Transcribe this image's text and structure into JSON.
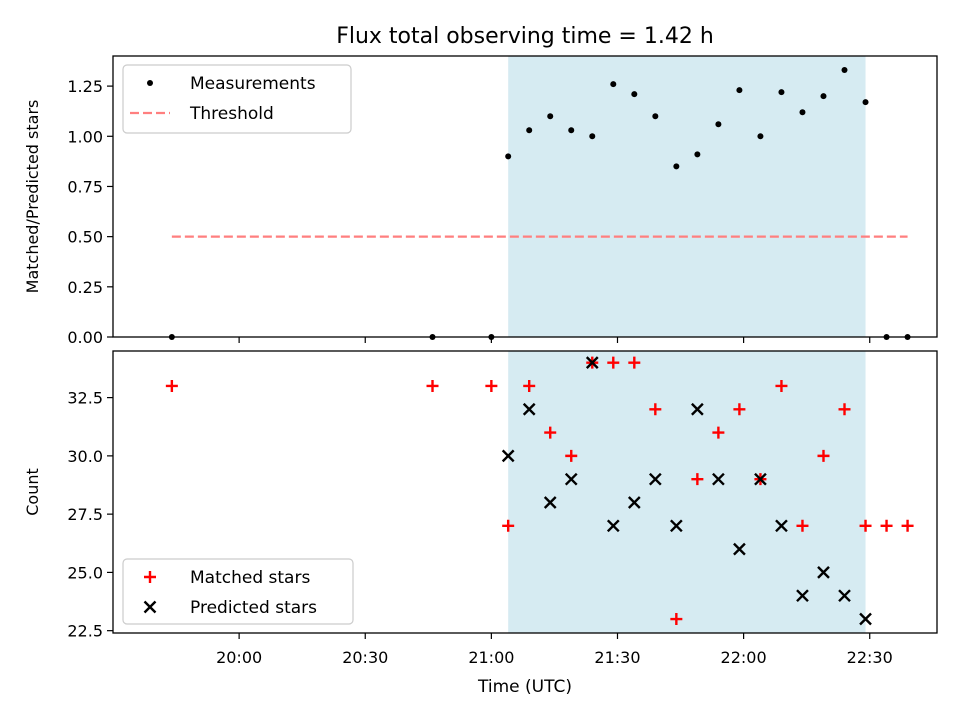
{
  "figure": {
    "title": "Flux total observing time = 1.42 h",
    "xlabel": "Time (UTC)",
    "highlight_color": "#add8e6",
    "highlight_range": [
      "21:04",
      "22:29"
    ],
    "x_ticks": [
      "20:00",
      "20:30",
      "21:00",
      "21:30",
      "22:00",
      "22:30"
    ],
    "x_range": [
      "19:37",
      "22:39"
    ]
  },
  "chart_data": [
    {
      "type": "scatter",
      "ylabel": "Matched/Predicted stars",
      "ylim": [
        0,
        1.4
      ],
      "y_ticks": [
        "0.00",
        "0.25",
        "0.50",
        "0.75",
        "1.00",
        "1.25"
      ],
      "grid": false,
      "legend_position": "top-left",
      "series": [
        {
          "name": "Measurements",
          "kind": "points",
          "color": "#000000",
          "x": [
            "19:44",
            "20:46",
            "21:00",
            "21:04",
            "21:09",
            "21:14",
            "21:19",
            "21:24",
            "21:29",
            "21:34",
            "21:39",
            "21:44",
            "21:49",
            "21:54",
            "21:59",
            "22:04",
            "22:09",
            "22:14",
            "22:19",
            "22:24",
            "22:29",
            "22:34",
            "22:39"
          ],
          "y": [
            0,
            0,
            0,
            0.9,
            1.03,
            1.1,
            1.03,
            1.0,
            1.26,
            1.21,
            1.1,
            0.85,
            0.91,
            1.06,
            1.23,
            1.0,
            1.22,
            1.12,
            1.2,
            1.33,
            1.17,
            0,
            0
          ]
        },
        {
          "name": "Threshold",
          "kind": "dashed-line",
          "color": "#ff7f7f",
          "x": [
            "19:44",
            "22:39"
          ],
          "y": [
            0.5,
            0.5
          ]
        }
      ]
    },
    {
      "type": "scatter",
      "ylabel": "Count",
      "ylim": [
        22.4,
        34.5
      ],
      "y_ticks": [
        "22.5",
        "25.0",
        "27.5",
        "30.0",
        "32.5"
      ],
      "grid": false,
      "legend_position": "bottom-left",
      "series": [
        {
          "name": "Matched stars",
          "kind": "plus",
          "color": "#ff0000",
          "x": [
            "19:44",
            "20:46",
            "21:00",
            "21:04",
            "21:09",
            "21:14",
            "21:19",
            "21:24",
            "21:29",
            "21:34",
            "21:39",
            "21:44",
            "21:49",
            "21:54",
            "21:59",
            "22:04",
            "22:09",
            "22:14",
            "22:19",
            "22:24",
            "22:29",
            "22:34",
            "22:39"
          ],
          "y": [
            33,
            33,
            33,
            27,
            33,
            31,
            30,
            34,
            34,
            34,
            32,
            23,
            29,
            31,
            32,
            29,
            33,
            27,
            30,
            32,
            27,
            27,
            27
          ]
        },
        {
          "name": "Predicted stars",
          "kind": "cross",
          "color": "#000000",
          "x": [
            "21:04",
            "21:09",
            "21:14",
            "21:19",
            "21:24",
            "21:29",
            "21:34",
            "21:39",
            "21:44",
            "21:49",
            "21:54",
            "21:59",
            "22:04",
            "22:09",
            "22:14",
            "22:19",
            "22:24",
            "22:29"
          ],
          "y": [
            30,
            32,
            28,
            29,
            34,
            27,
            28,
            29,
            27,
            32,
            29,
            26,
            29,
            27,
            24,
            25,
            24,
            23
          ]
        }
      ]
    }
  ]
}
